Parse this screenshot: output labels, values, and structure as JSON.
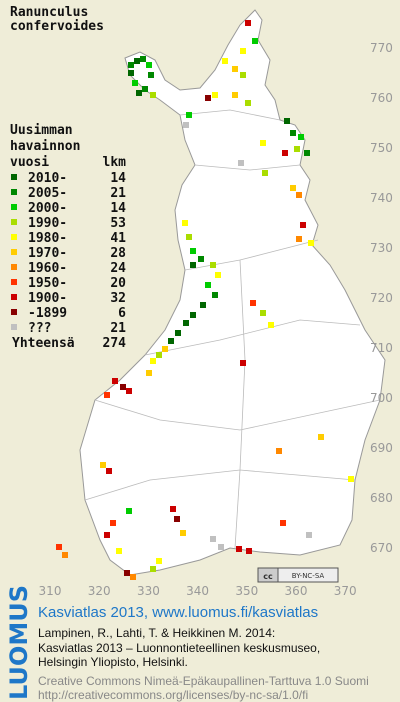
{
  "title": [
    "Ranunculus",
    "confervoides"
  ],
  "legend": {
    "heading": [
      "Uusimman",
      "havainnon",
      "vuosi"
    ],
    "count_heading": "lkm",
    "rows": [
      {
        "label": "2010-",
        "count": 14,
        "color": "#006600"
      },
      {
        "label": "2005-",
        "count": 21,
        "color": "#008800"
      },
      {
        "label": "2000-",
        "count": 14,
        "color": "#00cc00"
      },
      {
        "label": "1990-",
        "count": 53,
        "color": "#aadd00"
      },
      {
        "label": "1980-",
        "count": 41,
        "color": "#ffff00"
      },
      {
        "label": "1970-",
        "count": 28,
        "color": "#ffcc00"
      },
      {
        "label": "1960-",
        "count": 24,
        "color": "#ff8800"
      },
      {
        "label": "1950-",
        "count": 20,
        "color": "#ff3300"
      },
      {
        "label": "1900-",
        "count": 32,
        "color": "#cc0000"
      },
      {
        "label": "-1899",
        "count": 6,
        "color": "#880000"
      },
      {
        "label": "???",
        "count": 21,
        "color": "#c0c0c0"
      }
    ],
    "total_label": "Yhteensä",
    "total": 274
  },
  "map": {
    "y_labels": [
      770,
      760,
      750,
      740,
      730,
      720,
      710,
      700,
      690,
      680,
      670
    ],
    "x_labels": [
      310,
      320,
      330,
      340,
      350,
      360,
      370
    ]
  },
  "badge": {
    "cc": "cc",
    "text": "BY-NC-SA"
  },
  "logo": "LUOMUS",
  "credits": {
    "link": "Kasviatlas 2013, www.luomus.fi/kasviatlas",
    "citation": [
      "Lampinen, R., Lahti, T. & Heikkinen M. 2014:",
      "Kasviatlas 2013 – Luonnontieteellinen keskusmuseo,",
      "Helsingin Yliopisto, Helsinki."
    ],
    "license": [
      "Creative Commons Nimeä-Epäkaupallinen-Tarttuva 1.0 Suomi",
      "http://creativecommons.org/licenses/by-nc-sa/1.0/fi"
    ]
  }
}
